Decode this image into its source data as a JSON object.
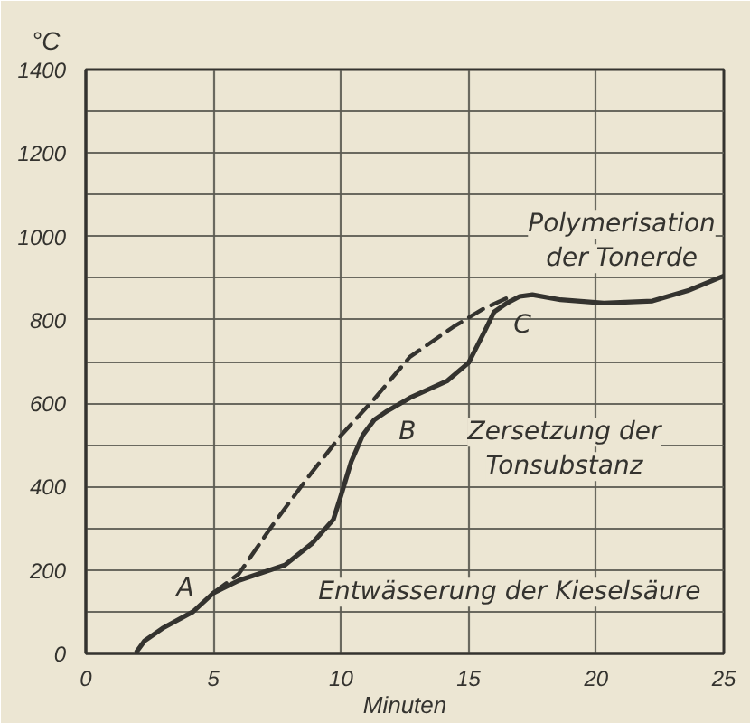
{
  "chart_data": {
    "type": "line",
    "xlabel": "Minuten",
    "ylabel": "°C",
    "xlim": [
      0,
      25
    ],
    "ylim": [
      0,
      1400
    ],
    "xticks": [
      0,
      5,
      10,
      15,
      20,
      25
    ],
    "yticks": [
      0,
      {
        "value": 100,
        "label": null
      },
      200,
      {
        "value": 300,
        "label": null
      },
      400,
      {
        "value": 500,
        "label": null
      },
      600,
      {
        "value": 700,
        "label": null
      },
      800,
      {
        "value": 900,
        "label": null
      },
      1000,
      {
        "value": 1100,
        "label": null
      },
      1200,
      {
        "value": 1300,
        "label": null
      },
      1400
    ],
    "grid": true,
    "series": [
      {
        "color": "#34332f",
        "line_style": "solid",
        "x": [
          2.0,
          2.3,
          3.0,
          4.2,
          5.0,
          6.0,
          7.8,
          8.85,
          9.7,
          10.0,
          10.4,
          10.85,
          11.3,
          11.8,
          12.7,
          14.15,
          15.0,
          15.6,
          16.0,
          16.5,
          17.0,
          17.5,
          18.6,
          20.3,
          22.2,
          23.6,
          24.8,
          25.0
        ],
        "values": [
          5,
          30,
          60,
          100,
          145,
          175,
          212,
          263,
          321,
          379,
          460,
          523,
          560,
          581,
          613,
          653,
          697,
          769,
          819,
          840,
          856,
          860,
          848,
          840,
          845,
          870,
          900,
          905
        ]
      },
      {
        "color": "#34332f",
        "line_style": "dashed",
        "x": [
          5.0,
          6.0,
          7.3,
          8.7,
          10.0,
          11.3,
          12.7,
          14.4,
          15.6,
          16.5
        ],
        "values": [
          145,
          191,
          306,
          422,
          523,
          610,
          711,
          783,
          827,
          852
        ]
      }
    ],
    "annotations": [
      "A",
      "B",
      "C",
      "Polymerisation\nder Tonerde",
      "Zersetzung der\nTonsubstanz",
      "Entwässerung der Kieselsäure"
    ]
  }
}
